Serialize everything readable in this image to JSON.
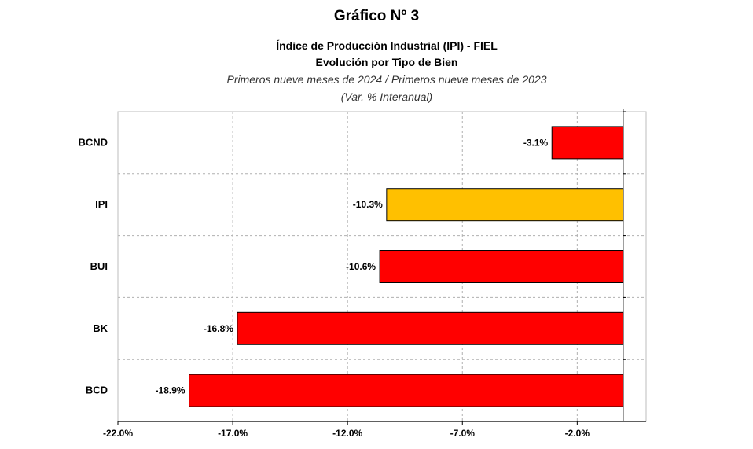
{
  "header": {
    "title": "Gráfico Nº 3",
    "subtitle1": "Índice de Producción Industrial (IPI) - FIEL",
    "subtitle2": "Evolución por Tipo de Bien",
    "subtitle3": "Primeros nueve meses de 2024 / Primeros nueve meses de 2023",
    "subtitle4": "(Var. % Interanual)"
  },
  "colors": {
    "bar_default": "#ff0000",
    "bar_highlight": "#ffc000",
    "grid": "#b0b0b0"
  },
  "chart_data": {
    "type": "bar",
    "orientation": "horizontal",
    "categories": [
      "BCND",
      "IPI",
      "BUI",
      "BK",
      "BCD"
    ],
    "values": [
      -3.1,
      -10.3,
      -10.6,
      -16.8,
      -18.9
    ],
    "value_labels": [
      "-3.1%",
      "-10.3%",
      "-10.6%",
      "-16.8%",
      "-18.9%"
    ],
    "highlight_category": "IPI",
    "xlim": [
      -22.0,
      1.0
    ],
    "xticks": [
      -22.0,
      -17.0,
      -12.0,
      -7.0,
      -2.0
    ],
    "xtick_labels": [
      "-22.0%",
      "-17.0%",
      "-12.0%",
      "-7.0%",
      "-2.0%"
    ],
    "grid": true,
    "legend": false
  }
}
